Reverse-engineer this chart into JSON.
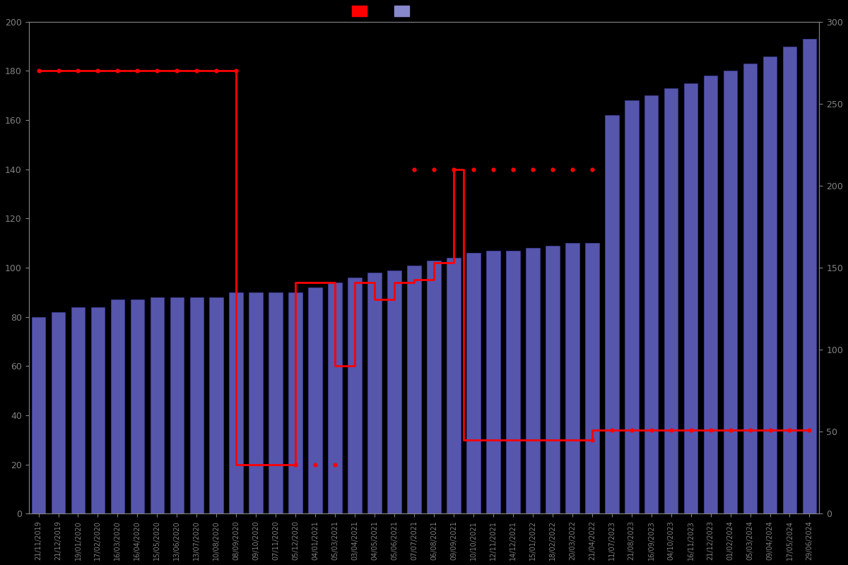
{
  "background_color": "#000000",
  "bar_color": "#6666cc",
  "bar_edge_color": "#4444aa",
  "line_color": "#ff0000",
  "left_ylim": [
    0,
    200
  ],
  "right_ylim": [
    0,
    300
  ],
  "x_labels": [
    "21/11/2019",
    "21/12/2019",
    "19/01/2020",
    "17/02/2020",
    "16/03/2020",
    "16/04/2020",
    "15/05/2020",
    "13/06/2020",
    "13/07/2020",
    "10/08/2020",
    "08/09/2020",
    "09/10/2020",
    "07/11/2020",
    "05/12/2020",
    "04/01/2021",
    "05/03/2021",
    "03/04/2021",
    "04/05/2021",
    "05/06/2021",
    "07/07/2021",
    "06/08/2021",
    "09/09/2021",
    "10/10/2021",
    "12/11/2021",
    "14/12/2021",
    "15/01/2022",
    "18/02/2022",
    "20/03/2022",
    "21/04/2022",
    "11/07/2023",
    "21/08/2023",
    "16/09/2023",
    "04/10/2023",
    "16/11/2023",
    "21/12/2023",
    "01/02/2024",
    "05/03/2024",
    "09/04/2024",
    "17/05/2024",
    "29/06/2024"
  ],
  "bar_values": [
    80,
    82,
    84,
    84,
    87,
    87,
    88,
    88,
    88,
    88,
    90,
    90,
    90,
    90,
    92,
    94,
    96,
    98,
    99,
    101,
    103,
    104,
    106,
    107,
    107,
    108,
    109,
    110,
    110,
    162,
    168,
    170,
    173,
    175,
    178,
    180,
    183,
    186,
    190,
    193
  ],
  "line_x": [
    0,
    10,
    10,
    13,
    13,
    15,
    15,
    16,
    16,
    17,
    17,
    18,
    18,
    19,
    19,
    20,
    20,
    21,
    21,
    21.5,
    21.5,
    28,
    28,
    39
  ],
  "line_y": [
    180,
    180,
    20,
    20,
    94,
    94,
    60,
    60,
    94,
    94,
    87,
    87,
    94,
    94,
    95,
    95,
    102,
    102,
    140,
    140,
    30,
    30,
    34,
    34
  ],
  "dot_x": [
    0,
    1,
    2,
    3,
    4,
    5,
    6,
    7,
    8,
    9,
    10,
    13,
    14,
    15,
    19,
    20,
    21,
    22,
    23,
    24,
    25,
    26,
    27,
    28,
    28,
    29,
    30,
    31,
    32,
    33,
    34,
    35,
    36,
    37,
    38,
    39
  ],
  "dot_y": [
    180,
    180,
    180,
    180,
    180,
    180,
    180,
    180,
    180,
    180,
    180,
    20,
    20,
    20,
    140,
    140,
    140,
    140,
    140,
    140,
    140,
    140,
    140,
    140,
    30,
    34,
    34,
    34,
    34,
    34,
    34,
    34,
    34,
    34,
    34,
    34
  ]
}
